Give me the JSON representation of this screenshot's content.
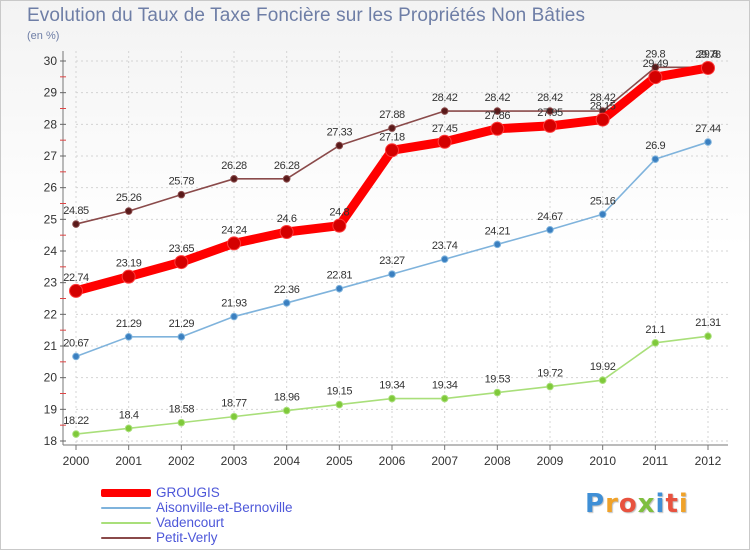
{
  "title": "Evolution du Taux de Taxe Foncière sur les Propriétés Non Bâties",
  "subtitle": "(en %)",
  "brand": {
    "letters": [
      "P",
      "r",
      "o",
      "x",
      "i",
      "t",
      "i"
    ],
    "colors": [
      "#3f8fd6",
      "#f0a229",
      "#e8523f",
      "#7fbf3f",
      "#3f8fd6",
      "#e8523f",
      "#f0a229"
    ]
  },
  "chart_data": {
    "type": "line",
    "x": [
      2000,
      2001,
      2002,
      2003,
      2004,
      2005,
      2006,
      2007,
      2008,
      2009,
      2010,
      2011,
      2012
    ],
    "ylim": [
      18,
      30
    ],
    "yticks": [
      18,
      19,
      20,
      21,
      22,
      23,
      24,
      25,
      26,
      27,
      28,
      29,
      30
    ],
    "grid": true,
    "legend_position": "bottom",
    "series": [
      {
        "name": "GROUGIS",
        "color": "#ff0000",
        "marker_color": "#d40000",
        "emphasis": "thick",
        "values": [
          22.74,
          23.19,
          23.65,
          24.24,
          24.6,
          24.8,
          27.18,
          27.45,
          27.86,
          27.95,
          28.15,
          29.49,
          29.78
        ],
        "labels": [
          "22.74",
          "23.19",
          "23.65",
          "24.24",
          "24.6",
          "24.8",
          "27.18",
          "27.45",
          "27.86",
          "27.95",
          "28.15",
          "29.49",
          "29.78"
        ]
      },
      {
        "name": "Aisonville-et-Bernoville",
        "color": "#7fb3dc",
        "marker_color": "#3a7fc0",
        "values": [
          20.67,
          21.29,
          21.29,
          21.93,
          22.36,
          22.81,
          23.27,
          23.74,
          24.21,
          24.67,
          25.16,
          26.9,
          27.44
        ],
        "labels": [
          "20.67",
          "21.29",
          "21.29",
          "21.93",
          "22.36",
          "22.81",
          "23.27",
          "23.74",
          "24.21",
          "24.67",
          "25.16",
          "26.9",
          "27.44"
        ]
      },
      {
        "name": "Vadencourt",
        "color": "#a9df7a",
        "marker_color": "#7fc93a",
        "values": [
          18.22,
          18.4,
          18.58,
          18.77,
          18.96,
          19.15,
          19.34,
          19.34,
          19.53,
          19.72,
          19.92,
          21.1,
          21.31
        ],
        "labels": [
          "18.22",
          "18.4",
          "18.58",
          "18.77",
          "18.96",
          "19.15",
          "19.34",
          "19.34",
          "19.53",
          "19.72",
          "19.92",
          "21.1",
          "21.31"
        ]
      },
      {
        "name": "Petit-Verly",
        "color": "#8a4a4a",
        "marker_color": "#5a1a1a",
        "values": [
          24.85,
          25.26,
          25.78,
          26.28,
          26.28,
          27.33,
          27.88,
          28.42,
          28.42,
          28.42,
          28.42,
          29.8,
          29.8
        ],
        "labels": [
          "24.85",
          "25.26",
          "25.78",
          "26.28",
          "26.28",
          "27.33",
          "27.88",
          "28.42",
          "28.42",
          "28.42",
          "28.42",
          "29.8",
          "29.8"
        ]
      }
    ]
  }
}
